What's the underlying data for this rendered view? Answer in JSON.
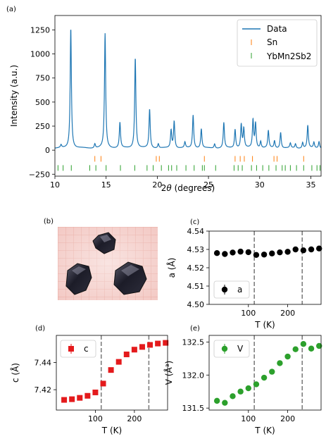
{
  "chart_data": [
    {
      "panel_label": "(a)",
      "type": "line",
      "xlabel": "2θ (degrees)",
      "ylabel": "Intensity (a.u.)",
      "xlim": [
        10,
        36
      ],
      "ylim": [
        -270,
        1400
      ],
      "xticks": [
        "10",
        "15",
        "20",
        "25",
        "30",
        "35"
      ],
      "yticks": [
        "−250",
        "0",
        "250",
        "500",
        "750",
        "1000",
        "1250"
      ],
      "legend_position": "top-right",
      "legend": [
        "Data",
        "Sn",
        "YbMn2Sb2"
      ],
      "peaks": [
        {
          "x": 10.6,
          "h": 30
        },
        {
          "x": 11.55,
          "h": 1255
        },
        {
          "x": 13.9,
          "h": 45
        },
        {
          "x": 14.9,
          "h": 1190
        },
        {
          "x": 16.35,
          "h": 265
        },
        {
          "x": 17.85,
          "h": 945
        },
        {
          "x": 19.25,
          "h": 405
        },
        {
          "x": 20.1,
          "h": 45
        },
        {
          "x": 21.35,
          "h": 185
        },
        {
          "x": 21.65,
          "h": 280
        },
        {
          "x": 22.7,
          "h": 60
        },
        {
          "x": 23.5,
          "h": 345
        },
        {
          "x": 24.3,
          "h": 200
        },
        {
          "x": 25.6,
          "h": 45
        },
        {
          "x": 26.5,
          "h": 265
        },
        {
          "x": 27.6,
          "h": 195
        },
        {
          "x": 28.2,
          "h": 245
        },
        {
          "x": 28.45,
          "h": 200
        },
        {
          "x": 29.35,
          "h": 290
        },
        {
          "x": 29.6,
          "h": 255
        },
        {
          "x": 30.1,
          "h": 70
        },
        {
          "x": 30.85,
          "h": 180
        },
        {
          "x": 31.45,
          "h": 75
        },
        {
          "x": 32.05,
          "h": 165
        },
        {
          "x": 33.0,
          "h": 50
        },
        {
          "x": 33.5,
          "h": 45
        },
        {
          "x": 34.2,
          "h": 60
        },
        {
          "x": 34.7,
          "h": 235
        },
        {
          "x": 35.3,
          "h": 60
        },
        {
          "x": 35.8,
          "h": 70
        }
      ],
      "sn_ticks": [
        13.9,
        14.5,
        19.9,
        20.2,
        24.6,
        27.6,
        28.1,
        28.5,
        29.3,
        31.4,
        31.7,
        34.3
      ],
      "ybmn2sb2_ticks": [
        10.3,
        10.8,
        11.6,
        13.4,
        14.0,
        15.0,
        16.4,
        17.8,
        19.0,
        19.6,
        20.4,
        21.1,
        21.4,
        21.9,
        22.8,
        23.6,
        24.4,
        24.6,
        25.7,
        27.5,
        27.9,
        28.3,
        29.2,
        29.7,
        30.3,
        30.9,
        31.6,
        32.2,
        32.5,
        33.0,
        33.6,
        34.3,
        35.1,
        35.6,
        35.9
      ],
      "sn_tick_y": -90,
      "ybmn2sb2_tick_y": -185,
      "colors": {
        "data": "#1f77b4",
        "sn": "#ff7f0e",
        "ybmn2sb2": "#2ca02c"
      }
    },
    {
      "panel_label": "(c)",
      "type": "scatter",
      "xlabel": "T (K)",
      "ylabel": "a (Å)",
      "xlim": [
        0,
        285
      ],
      "ylim": [
        4.5,
        4.54
      ],
      "xticks": [
        100,
        200
      ],
      "yticks": [
        "4.50",
        "4.51",
        "4.52",
        "4.53",
        "4.54"
      ],
      "series": [
        {
          "name": "a",
          "color": "#000000",
          "x": [
            20,
            40,
            60,
            80,
            100,
            120,
            140,
            160,
            180,
            200,
            220,
            240,
            260,
            280
          ],
          "y": [
            4.528,
            4.5275,
            4.5283,
            4.5288,
            4.5285,
            4.527,
            4.5272,
            4.5278,
            4.5284,
            4.5287,
            4.53,
            4.5295,
            4.53,
            4.5305
          ]
        }
      ],
      "vlines": [
        115,
        237
      ],
      "legend_position": "lower-left"
    },
    {
      "panel_label": "(d)",
      "type": "scatter",
      "xlabel": "T (K)",
      "ylabel": "c (Å)",
      "xlim": [
        0,
        285
      ],
      "ylim": [
        7.405,
        7.46
      ],
      "xticks": [
        100,
        200
      ],
      "yticks": [
        "7.42",
        "7.44"
      ],
      "series": [
        {
          "name": "c",
          "color": "#e41a1c",
          "x": [
            20,
            40,
            60,
            80,
            100,
            120,
            140,
            160,
            180,
            200,
            220,
            240,
            260,
            280
          ],
          "y": [
            7.4125,
            7.413,
            7.414,
            7.4155,
            7.418,
            7.4245,
            7.4345,
            7.4405,
            7.446,
            7.4495,
            7.4515,
            7.453,
            7.454,
            7.4545
          ]
        }
      ],
      "vlines": [
        115,
        237
      ],
      "legend_position": "top-left"
    },
    {
      "panel_label": "(e)",
      "type": "scatter",
      "xlabel": "T (K)",
      "ylabel": "V (Å³)",
      "xlim": [
        0,
        285
      ],
      "ylim": [
        131.47,
        132.6
      ],
      "xticks": [
        100,
        200
      ],
      "yticks": [
        "131.5",
        "132.0",
        "132.5"
      ],
      "series": [
        {
          "name": "V",
          "color": "#2ca02c",
          "x": [
            20,
            40,
            60,
            80,
            100,
            120,
            140,
            160,
            180,
            200,
            220,
            240,
            260,
            280
          ],
          "y": [
            131.61,
            131.58,
            131.68,
            131.75,
            131.8,
            131.86,
            131.96,
            132.05,
            132.18,
            132.28,
            132.39,
            132.47,
            132.4,
            132.44
          ]
        }
      ],
      "vlines": [
        115,
        237
      ],
      "legend_position": "top-left"
    }
  ],
  "photo": {
    "panel_label": "(b)",
    "description_icon": "crystals-on-grid-photo"
  }
}
